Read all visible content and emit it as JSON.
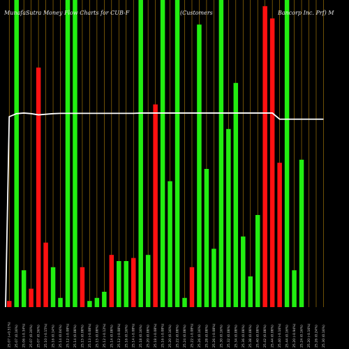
{
  "chart_data": {
    "type": "bar",
    "title": "MunafaSutra  Money Flow  Charts for CUB-F",
    "title_right_1": "(Customers",
    "title_right_2": "Bancorp Inc. Prf) M",
    "categories": [
      "25-07-2025",
      "25-07-2025",
      "25-07-2025",
      "25-07-2025",
      "25-07-2025",
      "25-07-2025",
      "25-07-2025",
      "25-07-2025",
      "25-07-2025",
      "25-07-2025",
      "25-07-2025",
      "25-07-2025",
      "25-07-2025",
      "25-07-2025",
      "25-07-2025",
      "25-07-2025",
      "25-07-2025",
      "25-07-2025",
      "25-07-2025",
      "25-07-2025",
      "25-07-2025",
      "25-07-2025",
      "25-07-2025",
      "25-07-2025",
      "25-07-2025",
      "25-07-2025",
      "25-07-2025",
      "25-07-2025",
      "25-07-2025",
      "25-07-2025",
      "25-07-2025",
      "25-07-2025",
      "25-07-2025",
      "25-07-2025",
      "25-07-2025",
      "25-07-2025",
      "25-07-2025",
      "25-07-2025",
      "25-07-2025",
      "25-07-2025",
      "25-07-2025",
      "25-07-2025",
      "25-07-2025",
      "25-07-2025"
    ],
    "tick_labels": [
      "25.07 (+0.51%)",
      "25.07 (0.16%)",
      "25.06 (-0.34%)",
      "25.07 (0.30%)",
      "25.07 (0.36%)",
      "25.10 (-0.15%)",
      "25.16 (0.14%)",
      "25.14 (0.04%)",
      "25.12 (-0.08%)",
      "25.14 (0.08%)",
      "25.15 (0.08%)",
      "25.13 (-0.08%)",
      "25.15 (0.08%)",
      "25.12 (-0.12%)",
      "25.14 (0.08%)",
      "25.12 (-0.08%)",
      "25.16 (0.16%)",
      "25.14 (-0.08%)",
      "25.18 (0.16%)",
      "25.20 (0.08%)",
      "25.18 (-0.08%)",
      "25.16 (-0.08%)",
      "25.20 (0.16%)",
      "25.22 (0.08%)",
      "25.24 (0.08%)",
      "25.22 (-0.08%)",
      "25.26 (0.16%)",
      "25.28 (0.08%)",
      "25.26 (-0.08%)",
      "25.30 (0.16%)",
      "25.32 (0.08%)",
      "25.34 (0.08%)",
      "25.36 (0.08%)",
      "25.38 (0.08%)",
      "25.40 (0.08%)",
      "25.42 (0.08%)",
      "25.44 (0.08%)",
      "25.40 (-0.16%)",
      "25.44 (0.16%)",
      "25.20 (-0.94%)",
      "25.24 (0.16%)",
      "25.20 (-0.16%)",
      "25.26 (0.24%)",
      "25.30 (0.16%)"
    ],
    "values": [
      2,
      100,
      12,
      6,
      78,
      21,
      13,
      3,
      100,
      100,
      13,
      2,
      3,
      5,
      17,
      15,
      15,
      16,
      100,
      17,
      66,
      100,
      41,
      100,
      3,
      13,
      92,
      45,
      19,
      100,
      58,
      73,
      23,
      10,
      30,
      98,
      94,
      47,
      100,
      12,
      48,
      0,
      0,
      0
    ],
    "colors": [
      "red",
      "green",
      "green",
      "red",
      "red",
      "red",
      "green",
      "green",
      "green",
      "green",
      "red",
      "green",
      "green",
      "green",
      "red",
      "green",
      "green",
      "red",
      "green",
      "green",
      "red",
      "green",
      "green",
      "green",
      "green",
      "red",
      "green",
      "green",
      "green",
      "green",
      "green",
      "green",
      "green",
      "green",
      "green",
      "red",
      "red",
      "red",
      "green",
      "green",
      "green",
      "green",
      "green",
      "green"
    ],
    "line_values": [
      62,
      63,
      63.2,
      63.0,
      62.6,
      62.8,
      63.0,
      63.1,
      63.1,
      63.1,
      63.1,
      63.1,
      63.1,
      63.1,
      63.1,
      63.1,
      63.1,
      63.1,
      63.2,
      63.2,
      63.2,
      63.2,
      63.2,
      63.2,
      63.2,
      63.2,
      63.2,
      63.2,
      63.2,
      63.2,
      63.2,
      63.2,
      63.2,
      63.2,
      63.2,
      63.2,
      63.2,
      61.2,
      61.2,
      61.2,
      61.2,
      61.2,
      61.2,
      61.2
    ],
    "ylim": [
      0,
      100
    ],
    "grid": "vertical",
    "legend": "none",
    "palette": {
      "background": "#000000",
      "up": "#22ee11",
      "down": "#ff1111",
      "grid": "#b8860b",
      "line": "#ffffff"
    }
  }
}
